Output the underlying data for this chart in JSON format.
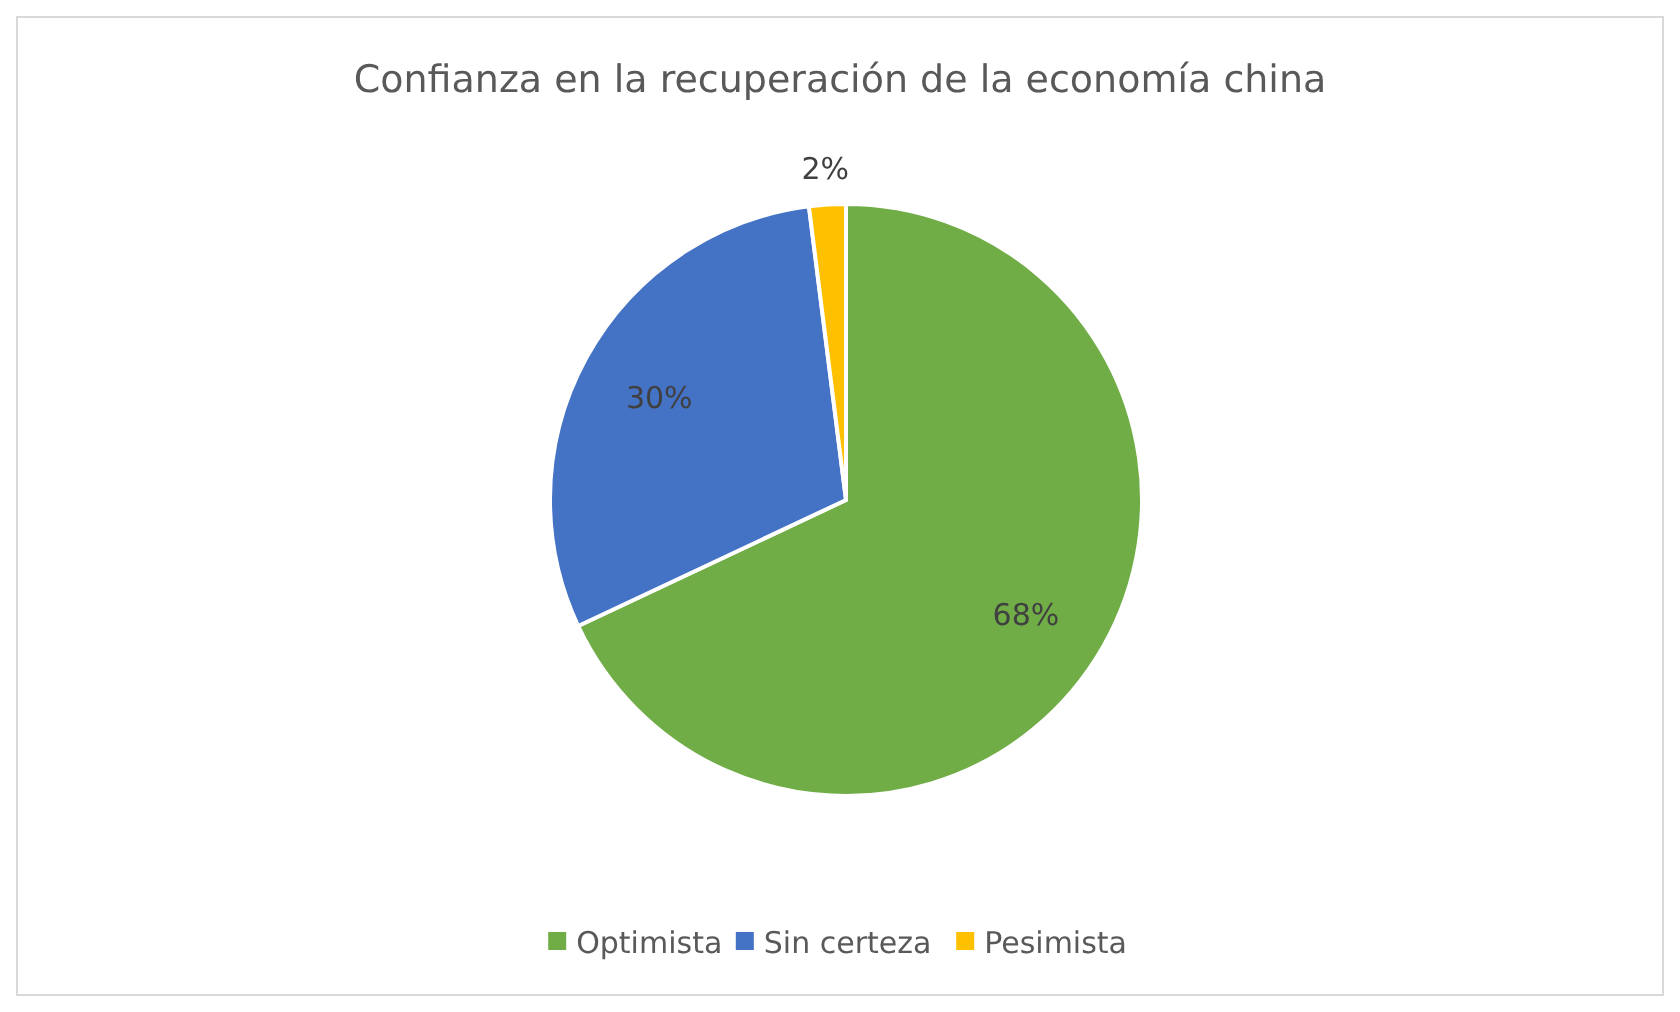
{
  "chart_data": {
    "type": "pie",
    "title": "Confianza en la recuperación de la economía china",
    "categories": [
      "Optimista",
      "Sin certeza",
      "Pesimista"
    ],
    "values": [
      68,
      30,
      2
    ],
    "colors": [
      "#70ad47",
      "#4472c4",
      "#ffc000"
    ],
    "value_labels": [
      "68%",
      "30%",
      "2%"
    ],
    "legend": "bottom"
  }
}
